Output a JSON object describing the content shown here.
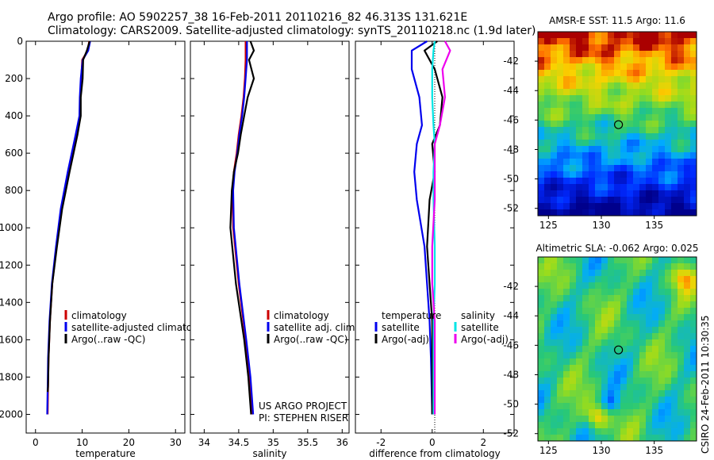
{
  "header": {
    "line1": "Argo profile: AO 5902257_38 16-Feb-2011 20110216_82 46.313S 131.621E",
    "line2": "Climatology: CARS2009. Satellite-adjusted climatology: synTS_20110218.nc (1.9d later)"
  },
  "footer": {
    "project_line1": "US ARGO PROJECT",
    "project_line2": "PI: STEPHEN RISER",
    "credit": "CSIRO 24-Feb-2011 10:30:35"
  },
  "colors": {
    "clim": "#cc0000",
    "sat": "#0000ee",
    "argo": "#000000",
    "sal_sat": "#00e5e5",
    "sal_argo": "#ee00ee"
  },
  "chart_data": [
    {
      "type": "line",
      "id": "temperature",
      "xlabel": "temperature",
      "ylabel": "",
      "xlim": [
        -2,
        32
      ],
      "ylim": [
        0,
        2100
      ],
      "y_inverted": true,
      "xticks": [
        0,
        10,
        20,
        30
      ],
      "xtick_labels": [
        "0",
        "10",
        "20",
        "30"
      ],
      "yticks": [
        0,
        200,
        400,
        600,
        800,
        1000,
        1200,
        1400,
        1600,
        1800,
        2000
      ],
      "ytick_labels": [
        "0",
        "200",
        "400",
        "600",
        "800",
        "1000",
        "1200",
        "1400",
        "1600",
        "1800",
        "2000"
      ],
      "legend": [
        "climatology",
        "satellite-adjusted climatology",
        "Argo(..raw -QC)"
      ],
      "series": [
        {
          "name": "climatology",
          "color": "#cc0000",
          "x": [
            11.5,
            11.2,
            10.0,
            9.8,
            9.6,
            9.5,
            8.7,
            7.0,
            5.5,
            4.5,
            3.6,
            3.1,
            2.8,
            2.7,
            2.6
          ],
          "y": [
            0,
            50,
            100,
            200,
            300,
            400,
            500,
            700,
            900,
            1100,
            1300,
            1500,
            1700,
            1850,
            2000
          ]
        },
        {
          "name": "satellite-adjusted climatology",
          "color": "#0000ee",
          "x": [
            11.7,
            11.3,
            10.1,
            9.7,
            9.5,
            9.4,
            8.6,
            6.9,
            5.4,
            4.4,
            3.5,
            3.0,
            2.7,
            2.6,
            2.5
          ],
          "y": [
            0,
            50,
            100,
            200,
            300,
            400,
            500,
            700,
            900,
            1100,
            1300,
            1500,
            1700,
            1850,
            2000
          ]
        },
        {
          "name": "Argo(..raw -QC)",
          "color": "#000000",
          "x": [
            11.6,
            11.0,
            10.2,
            10.1,
            9.7,
            9.7,
            9.0,
            7.3,
            5.7,
            4.6,
            3.6,
            3.1,
            2.8,
            2.7,
            2.6
          ],
          "y": [
            0,
            50,
            100,
            200,
            300,
            400,
            500,
            700,
            900,
            1100,
            1300,
            1500,
            1700,
            1850,
            1880
          ]
        }
      ]
    },
    {
      "type": "line",
      "id": "salinity",
      "xlabel": "salinity",
      "xlim": [
        33.8,
        36.1
      ],
      "ylim": [
        0,
        2100
      ],
      "y_inverted": true,
      "xticks": [
        34,
        34.5,
        35,
        35.5,
        36
      ],
      "xtick_labels": [
        "34",
        "34.5",
        "35",
        "35.5",
        "36"
      ],
      "legend": [
        "climatology",
        "satellite adj. clim.",
        "Argo(..raw -QC)"
      ],
      "series": [
        {
          "name": "climatology",
          "color": "#cc0000",
          "x": [
            34.6,
            34.6,
            34.6,
            34.59,
            34.57,
            34.54,
            34.5,
            34.47,
            34.43,
            34.41,
            34.42,
            34.5,
            34.6,
            34.66,
            34.7
          ],
          "y": [
            0,
            50,
            100,
            200,
            300,
            400,
            500,
            600,
            700,
            800,
            1000,
            1300,
            1600,
            1800,
            2000
          ]
        },
        {
          "name": "satellite adj. clim.",
          "color": "#0000ee",
          "x": [
            34.62,
            34.62,
            34.62,
            34.6,
            34.58,
            34.55,
            34.51,
            34.48,
            34.44,
            34.42,
            34.43,
            34.51,
            34.61,
            34.67,
            34.71
          ],
          "y": [
            0,
            50,
            100,
            200,
            300,
            400,
            500,
            600,
            700,
            800,
            1000,
            1300,
            1600,
            1800,
            2000
          ]
        },
        {
          "name": "Argo(..raw -QC)",
          "color": "#000000",
          "x": [
            34.67,
            34.72,
            34.65,
            34.72,
            34.63,
            34.58,
            34.53,
            34.49,
            34.43,
            34.4,
            34.38,
            34.46,
            34.58,
            34.64,
            34.68
          ],
          "y": [
            0,
            50,
            100,
            200,
            300,
            400,
            500,
            600,
            700,
            800,
            1000,
            1300,
            1600,
            1800,
            2000
          ]
        }
      ]
    },
    {
      "type": "line",
      "id": "difference",
      "xlabel": "difference from climatology",
      "xlim": [
        -3,
        3.2
      ],
      "ylim": [
        0,
        2100
      ],
      "y_inverted": true,
      "xticks": [
        -2,
        0,
        2
      ],
      "xtick_labels": [
        "-2",
        "0",
        "2"
      ],
      "legend_headers": [
        "temperature",
        "salinity"
      ],
      "legend": [
        "satellite",
        "Argo(-adj)",
        "satellite",
        "Argo(-adj)"
      ],
      "series": [
        {
          "name": "temperature satellite",
          "color": "#0000ee",
          "x": [
            -0.2,
            -0.8,
            -0.8,
            -0.5,
            -0.4,
            -0.6,
            -0.7,
            -0.6,
            -0.3,
            -0.2,
            -0.1,
            -0.05,
            0.0
          ],
          "y": [
            0,
            50,
            150,
            300,
            450,
            550,
            700,
            850,
            1100,
            1300,
            1500,
            1700,
            2000
          ]
        },
        {
          "name": "temperature Argo(-adj)",
          "color": "#000000",
          "x": [
            0.2,
            -0.3,
            0.1,
            0.4,
            0.3,
            0.0,
            0.1,
            -0.1,
            -0.2,
            -0.1,
            0.0,
            0.0,
            0.0
          ],
          "y": [
            0,
            50,
            150,
            300,
            450,
            550,
            700,
            850,
            1100,
            1300,
            1500,
            1700,
            2000
          ]
        },
        {
          "name": "salinity satellite",
          "color": "#00e5e5",
          "x": [
            0.1,
            0.05,
            0.0,
            0.0,
            0.05,
            0.1,
            0.05,
            0.05,
            0.1,
            0.1,
            0.05,
            0.05,
            0.05
          ],
          "y": [
            0,
            50,
            150,
            300,
            450,
            550,
            700,
            850,
            1100,
            1300,
            1500,
            1700,
            2000
          ]
        },
        {
          "name": "salinity Argo(-adj)",
          "color": "#ee00ee",
          "x": [
            0.5,
            0.7,
            0.4,
            0.5,
            0.3,
            0.1,
            0.1,
            0.1,
            0.0,
            0.0,
            0.1,
            0.1,
            0.1
          ],
          "y": [
            0,
            50,
            150,
            300,
            450,
            550,
            700,
            850,
            1100,
            1300,
            1500,
            1700,
            2000
          ]
        }
      ]
    },
    {
      "type": "heatmap",
      "id": "sst-map",
      "title": "AMSR-E SST: 11.5 Argo: 11.6",
      "xlim": [
        124,
        139
      ],
      "ylim": [
        -52.5,
        -40
      ],
      "xticks": [
        125,
        130,
        135
      ],
      "yticks": [
        -42,
        -44,
        -46,
        -48,
        -50,
        -52
      ],
      "ytick_labels": [
        "-42",
        "-44",
        "-46",
        "-48",
        "-50",
        "-52"
      ],
      "marker": {
        "lon": 131.621,
        "lat": -46.313
      }
    },
    {
      "type": "heatmap",
      "id": "sla-map",
      "title": "Altimetric SLA: -0.062 Argo: 0.025",
      "xlim": [
        124,
        139
      ],
      "ylim": [
        -52.5,
        -40
      ],
      "xticks": [
        125,
        130,
        135
      ],
      "yticks": [
        -42,
        -44,
        -46,
        -48,
        -50,
        -52
      ],
      "ytick_labels": [
        "-42",
        "-44",
        "-46",
        "-48",
        "-50",
        "-52"
      ],
      "marker": {
        "lon": 131.621,
        "lat": -46.313
      }
    }
  ]
}
